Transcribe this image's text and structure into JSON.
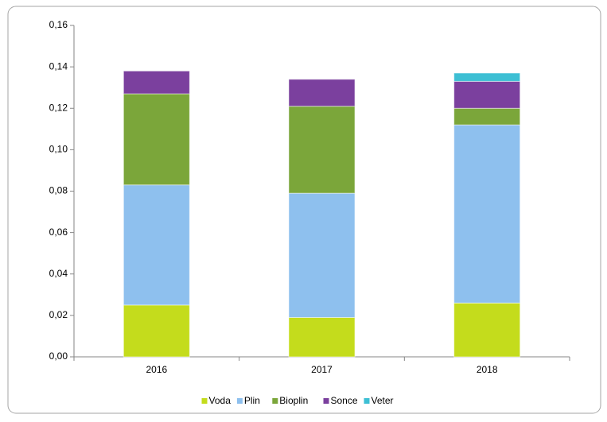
{
  "chart_data": {
    "type": "stacked_bar",
    "categories": [
      "2016",
      "2017",
      "2018"
    ],
    "series": [
      {
        "name": "Voda",
        "color": "#c4dc1c",
        "values": [
          0.025,
          0.019,
          0.026
        ]
      },
      {
        "name": "Plin",
        "color": "#8ec0ee",
        "values": [
          0.058,
          0.06,
          0.086
        ]
      },
      {
        "name": "Bioplin",
        "color": "#7ba63a",
        "values": [
          0.044,
          0.042,
          0.008
        ]
      },
      {
        "name": "Sonce",
        "color": "#7b409e",
        "values": [
          0.011,
          0.013,
          0.013
        ]
      },
      {
        "name": "Veter",
        "color": "#3dbfd4",
        "values": [
          0,
          0,
          0.004
        ]
      }
    ],
    "ylim": [
      0,
      0.16
    ],
    "yticks": [
      {
        "value": 0,
        "label": "0,00"
      },
      {
        "value": 0.02,
        "label": "0,02"
      },
      {
        "value": 0.04,
        "label": "0,04"
      },
      {
        "value": 0.06,
        "label": "0,06"
      },
      {
        "value": 0.08,
        "label": "0,08"
      },
      {
        "value": 0.1,
        "label": "0,10"
      },
      {
        "value": 0.12,
        "label": "0,12"
      },
      {
        "value": 0.14,
        "label": "0,14"
      },
      {
        "value": 0.16,
        "label": "0,16"
      }
    ],
    "grid": false,
    "legend": "bottom"
  }
}
